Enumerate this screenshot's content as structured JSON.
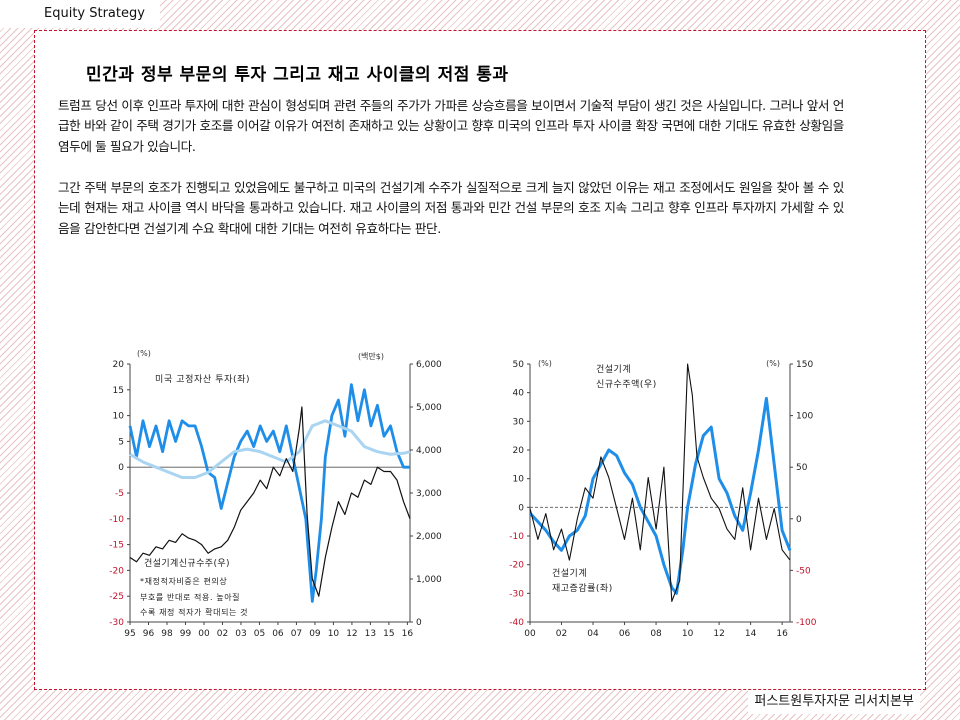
{
  "header": {
    "label": "Equity Strategy"
  },
  "footer": {
    "label": "퍼스트원투자자문 리서치본부"
  },
  "title": "민간과 정부 부문의 투자 그리고 재고 사이클의 저점 통과",
  "paragraphs": [
    "트럼프 당선 이후 인프라 투자에 대한 관심이 형성되며 관련 주들의 주가가 가파른 상승흐름을 보이면서 기술적 부담이 생긴 것은 사실입니다. 그러나 앞서 언급한 바와 같이 주택 경기가 호조를 이어갈 이유가 여전히 존재하고 있는 상황이고 향후 미국의 인프라 투자 사이클 확장 국면에 대한 기대도 유효한 상황임을 염두에 둘 필요가 있습니다.",
    "그간 주택 부문의 호조가 진행되고 있었음에도 불구하고 미국의 건설기계 수주가 실질적으로 크게 늘지 않았던 이유는 재고 조정에서도 원일을 찾아 볼 수 있는데 현재는 재고 사이클 역시 바닥을 통과하고 있습니다. 재고 사이클의 저점 통과와 민간 건설 부문의 호조 지속 그리고 향후 인프라 투자까지 가세할 수 있음을 감안한다면 건설기계 수요 확대에 대한 기대는 여전히 유효하다는 판단."
  ],
  "chart_data": [
    {
      "type": "line",
      "title": "",
      "left_unit": "(%)",
      "right_unit": "(백만$)",
      "x_tick_labels": [
        "95",
        "96",
        "98",
        "99",
        "00",
        "02",
        "03",
        "05",
        "06",
        "07",
        "09",
        "10",
        "12",
        "13",
        "15",
        "16"
      ],
      "left_ticks": [
        "20",
        "15",
        "10",
        "5",
        "0",
        "-5",
        "-10",
        "-15",
        "-20",
        "-25",
        "-30"
      ],
      "right_ticks": [
        "6,000",
        "5,000",
        "4,000",
        "3,000",
        "2,000",
        "1,000",
        "0"
      ],
      "ylim_left": [
        -30,
        20
      ],
      "ylim_right": [
        0,
        6000
      ],
      "xlim": [
        1995,
        2016.5
      ],
      "annotations": {
        "series_a_label": "미국 고정자산 투자(좌)",
        "series_c_label": "건설기계신규수주(우)",
        "note_lines": [
          "*재정적자비중은 편의상",
          "부호를 반대로 적용. 높아질",
          "수록 재정 적자가 확대되는 것"
        ]
      },
      "series": [
        {
          "name": "미국 고정자산 투자(좌)",
          "color": "#1e8ee8",
          "axis": "left",
          "x": [
            1995,
            1995.5,
            1996,
            1996.5,
            1997,
            1997.5,
            1998,
            1998.5,
            1999,
            1999.5,
            2000,
            2000.5,
            2001,
            2001.5,
            2002,
            2002.5,
            2003,
            2003.5,
            2004,
            2004.5,
            2005,
            2005.5,
            2006,
            2006.5,
            2007,
            2007.5,
            2008,
            2008.5,
            2009,
            2009.3,
            2009.7,
            2010,
            2010.5,
            2011,
            2011.5,
            2012,
            2012.5,
            2013,
            2013.5,
            2014,
            2014.5,
            2015,
            2015.5,
            2016,
            2016.5
          ],
          "y": [
            8,
            2,
            9,
            4,
            8,
            3,
            9,
            5,
            9,
            8,
            8,
            4,
            -1,
            -2,
            -8,
            -3,
            2,
            5,
            7,
            4,
            8,
            5,
            7,
            3,
            8,
            2,
            -4,
            -10,
            -26,
            -20,
            -10,
            2,
            10,
            13,
            6,
            16,
            9,
            15,
            8,
            12,
            6,
            8,
            3,
            0,
            0
          ]
        },
        {
          "name": "재정적자비중(좌)",
          "color": "#a9d4f2",
          "axis": "left",
          "x": [
            1995,
            1996,
            1997,
            1998,
            1999,
            2000,
            2001,
            2002,
            2003,
            2004,
            2005,
            2006,
            2007,
            2008,
            2009,
            2010,
            2011,
            2012,
            2013,
            2014,
            2015,
            2016,
            2016.5
          ],
          "y": [
            2.5,
            1,
            0,
            -1,
            -2,
            -2,
            -1,
            1,
            3,
            3.5,
            3,
            2,
            1,
            3,
            8,
            9,
            8,
            7,
            4,
            3,
            2.5,
            2.7,
            3
          ]
        },
        {
          "name": "건설기계신규수주(우)",
          "color": "#111111",
          "axis": "right",
          "x": [
            1995,
            1995.5,
            1996,
            1996.5,
            1997,
            1997.5,
            1998,
            1998.5,
            1999,
            1999.5,
            2000,
            2000.5,
            2001,
            2001.5,
            2002,
            2002.5,
            2003,
            2003.5,
            2004,
            2004.5,
            2005,
            2005.5,
            2006,
            2006.5,
            2007,
            2007.5,
            2008,
            2008.2,
            2008.6,
            2009,
            2009.5,
            2010,
            2010.5,
            2011,
            2011.5,
            2012,
            2012.5,
            2013,
            2013.5,
            2014,
            2014.5,
            2015,
            2015.5,
            2016,
            2016.5
          ],
          "y": [
            1500,
            1400,
            1600,
            1550,
            1750,
            1700,
            1900,
            1850,
            2050,
            1950,
            1900,
            1800,
            1600,
            1700,
            1750,
            1900,
            2200,
            2600,
            2800,
            3000,
            3300,
            3100,
            3600,
            3400,
            3800,
            3500,
            4500,
            5000,
            2500,
            1000,
            600,
            1500,
            2200,
            2800,
            2500,
            3000,
            2900,
            3300,
            3200,
            3600,
            3500,
            3500,
            3300,
            2800,
            2400
          ]
        }
      ]
    },
    {
      "type": "line",
      "title": "",
      "left_unit": "(%)",
      "right_unit": "(%)",
      "x_tick_labels": [
        "00",
        "02",
        "04",
        "06",
        "08",
        "10",
        "12",
        "14",
        "16"
      ],
      "left_ticks": [
        "50",
        "40",
        "30",
        "20",
        "10",
        "0",
        "-10",
        "-20",
        "-30",
        "-40"
      ],
      "right_ticks": [
        "150",
        "100",
        "50",
        "0",
        "-50",
        "-100"
      ],
      "ylim_left": [
        -40,
        50
      ],
      "ylim_right": [
        -100,
        150
      ],
      "xlim": [
        2000,
        2016.5
      ],
      "annotations": {
        "right_series_label_1": "건설기계",
        "right_series_label_2": "신규수주액(우)",
        "left_series_label_1": "건설기계",
        "left_series_label_2": "재고증감률(좌)"
      },
      "series": [
        {
          "name": "건설기계 재고증감률(좌)",
          "color": "#1e8ee8",
          "axis": "left",
          "x": [
            2000,
            2000.5,
            2001,
            2001.5,
            2002,
            2002.5,
            2003,
            2003.5,
            2004,
            2004.5,
            2005,
            2005.5,
            2006,
            2006.5,
            2007,
            2007.5,
            2008,
            2008.5,
            2009,
            2009.3,
            2009.7,
            2010,
            2010.5,
            2011,
            2011.5,
            2012,
            2012.5,
            2013,
            2013.5,
            2014,
            2014.5,
            2015,
            2015.5,
            2016,
            2016.5
          ],
          "y": [
            -2,
            -5,
            -8,
            -12,
            -15,
            -10,
            -8,
            -3,
            10,
            15,
            20,
            18,
            12,
            8,
            0,
            -5,
            -10,
            -20,
            -28,
            -30,
            -15,
            0,
            15,
            25,
            28,
            10,
            5,
            -3,
            -8,
            5,
            20,
            38,
            15,
            -8,
            -15
          ]
        },
        {
          "name": "건설기계 신규수주액(우)",
          "color": "#111111",
          "axis": "right",
          "x": [
            2000,
            2000.5,
            2001,
            2001.5,
            2002,
            2002.5,
            2003,
            2003.5,
            2004,
            2004.5,
            2005,
            2005.5,
            2006,
            2006.5,
            2007,
            2007.5,
            2008,
            2008.5,
            2009,
            2009.5,
            2010,
            2010.3,
            2010.6,
            2011,
            2011.5,
            2012,
            2012.5,
            2013,
            2013.5,
            2014,
            2014.5,
            2015,
            2015.5,
            2016,
            2016.5
          ],
          "y": [
            10,
            -20,
            5,
            -30,
            -10,
            -40,
            0,
            30,
            20,
            60,
            40,
            10,
            -20,
            20,
            -30,
            40,
            -10,
            50,
            -80,
            -60,
            150,
            120,
            60,
            40,
            20,
            10,
            -10,
            -20,
            30,
            -30,
            20,
            -20,
            10,
            -30,
            -40
          ]
        }
      ]
    }
  ]
}
